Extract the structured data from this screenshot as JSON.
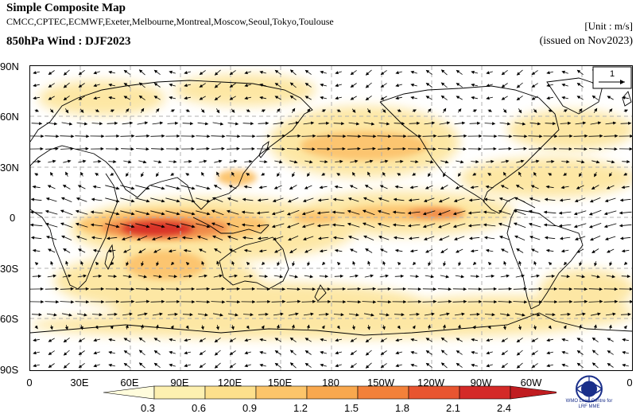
{
  "header": {
    "title": "Simple Composite Map",
    "centres": "CMCC,CPTEC,ECMWF,Exeter,Melbourne,Montreal,Moscow,Seoul,Tokyo,Toulouse",
    "subtitle": "850hPa Wind : DJF2023",
    "unit": "[Unit : m/s]",
    "issued": "(issued on Nov2023)"
  },
  "map": {
    "lat_labels": [
      "90N",
      "60N",
      "30N",
      "0",
      "30S",
      "60S",
      "90S"
    ],
    "lon_labels": [
      "0",
      "30E",
      "60E",
      "90E",
      "120E",
      "150E",
      "180",
      "150W",
      "120W",
      "90W",
      "60W",
      "0"
    ],
    "reference_vector": "1",
    "grid": "dashed"
  },
  "colorbar": {
    "ticks": [
      "0.3",
      "0.6",
      "0.9",
      "1.2",
      "1.5",
      "1.8",
      "2.1",
      "2.4"
    ],
    "colors": [
      "#fffcdc",
      "#fdf0b0",
      "#fde08c",
      "#fcc56a",
      "#f9a84e",
      "#f3813a",
      "#e85530",
      "#d42a28",
      "#c01c20"
    ]
  },
  "logo": {
    "text_line1": "WMO Lead Centre for",
    "text_line2": "LRF MME"
  }
}
